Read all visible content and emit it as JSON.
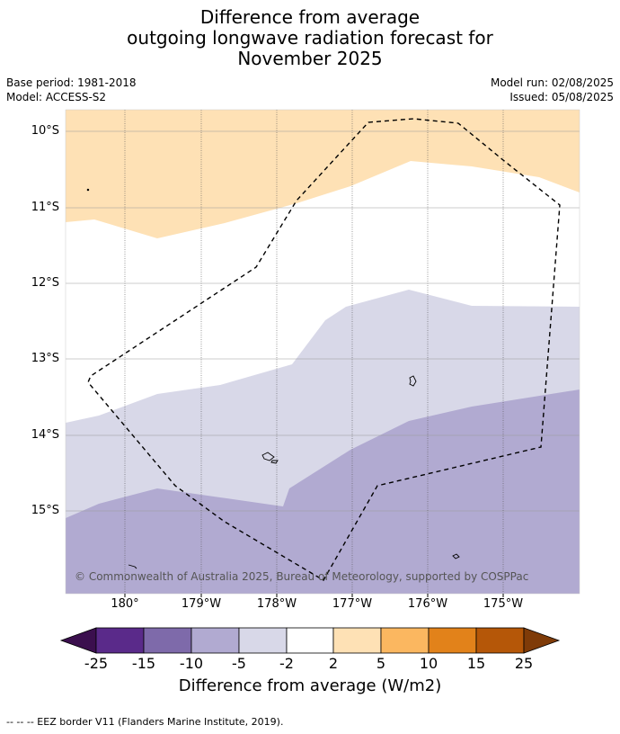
{
  "title": [
    "Difference from average",
    "outgoing longwave radiation forecast for",
    "November 2025"
  ],
  "base_period": "Base period: 1981-2018",
  "model": "Model: ACCESS-S2",
  "model_run": "Model run: 02/08/2025",
  "issued": "Issued: 05/08/2025",
  "lat_labels": [
    "10°S",
    "11°S",
    "12°S",
    "13°S",
    "14°S",
    "15°S"
  ],
  "lon_labels": [
    "180°",
    "179°W",
    "178°W",
    "177°W",
    "176°W",
    "175°W"
  ],
  "copyright": "© Commonwealth of Australia 2025, Bureau of Meteorology, supported by COSPPac",
  "colorbar": {
    "ticks": [
      "-25",
      "-15",
      "-10",
      "-5",
      "-2",
      "2",
      "5",
      "10",
      "15",
      "25"
    ],
    "colors": [
      "#3b0f4e",
      "#5a2a8a",
      "#7e6aaa",
      "#b1aad1",
      "#d8d8e8",
      "#ffffff",
      "#fee1b5",
      "#fbb760",
      "#e2821a",
      "#b55708",
      "#7f3b08"
    ],
    "label": "Difference from average (W/m2)"
  },
  "legend_footnote": "--  --  -- EEZ border V11 (Flanders Marine Institute, 2019).",
  "map_colors": {
    "band_2_to_5": "#fee1b5",
    "band_neg5_to_neg2": "#d8d8e8",
    "band_neg10_to_neg5": "#b1aad1",
    "eez_border": "#000000"
  }
}
